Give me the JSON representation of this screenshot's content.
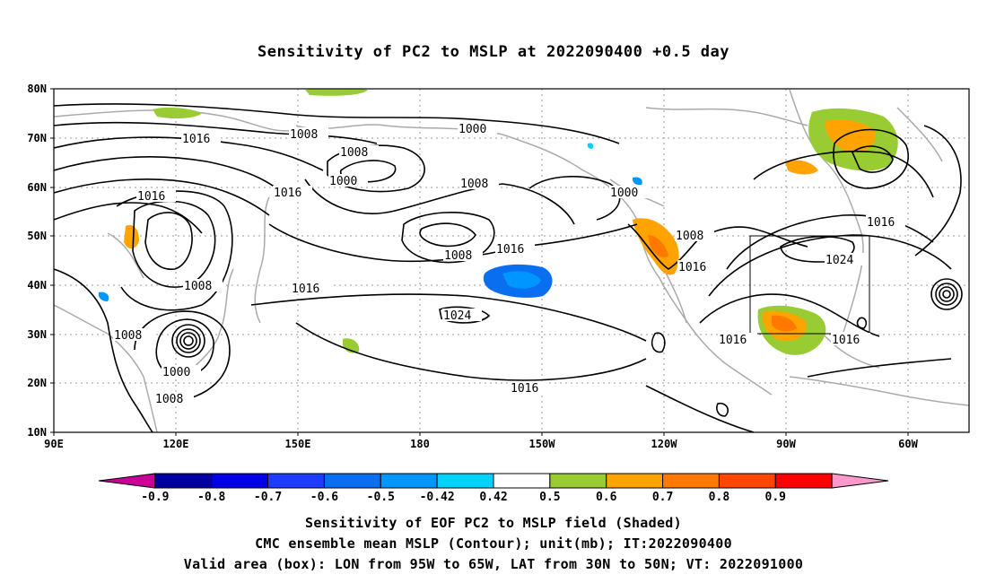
{
  "title": "Sensitivity of PC2 to MSLP at 2022090400 +0.5 day",
  "lat_ticks": [
    "80N",
    "70N",
    "60N",
    "50N",
    "40N",
    "30N",
    "20N",
    "10N"
  ],
  "lon_ticks": [
    "90E",
    "120E",
    "150E",
    "180",
    "150W",
    "120W",
    "90W",
    "60W"
  ],
  "contour_labels": [
    {
      "text": "1016"
    },
    {
      "text": "1008"
    },
    {
      "text": "1000"
    },
    {
      "text": "1008"
    },
    {
      "text": "1000"
    },
    {
      "text": "1016"
    },
    {
      "text": "1008"
    },
    {
      "text": "1000"
    },
    {
      "text": "1016"
    },
    {
      "text": "1008"
    },
    {
      "text": "1016"
    },
    {
      "text": "1008"
    },
    {
      "text": "1016"
    },
    {
      "text": "1016"
    },
    {
      "text": "1008"
    },
    {
      "text": "1024"
    },
    {
      "text": "1008"
    },
    {
      "text": "1000"
    },
    {
      "text": "1008"
    },
    {
      "text": "1016"
    },
    {
      "text": "1016"
    },
    {
      "text": "1016"
    },
    {
      "text": "1024"
    },
    {
      "text": "1016"
    }
  ],
  "colorbar": {
    "labels": [
      "-0.9",
      "-0.8",
      "-0.7",
      "-0.6",
      "-0.5",
      "-0.42",
      "0.42",
      "0.5",
      "0.6",
      "0.7",
      "0.8",
      "0.9"
    ],
    "colors": [
      "#cc0099",
      "#0000a0",
      "#0000e6",
      "#1e3cff",
      "#0a6ef0",
      "#0096ff",
      "#00d2ff",
      "#ffffff",
      "#99cc33",
      "#ffa300",
      "#ff7800",
      "#ff4600",
      "#ff0000",
      "#ff99cc"
    ]
  },
  "captions": [
    "Sensitivity of EOF PC2 to MSLP field (Shaded)",
    "CMC ensemble mean MSLP (Contour); unit(mb); IT:2022090400",
    "Valid area (box): LON from 95W to 65W, LAT from 30N to 50N; VT: 2022091000"
  ]
}
